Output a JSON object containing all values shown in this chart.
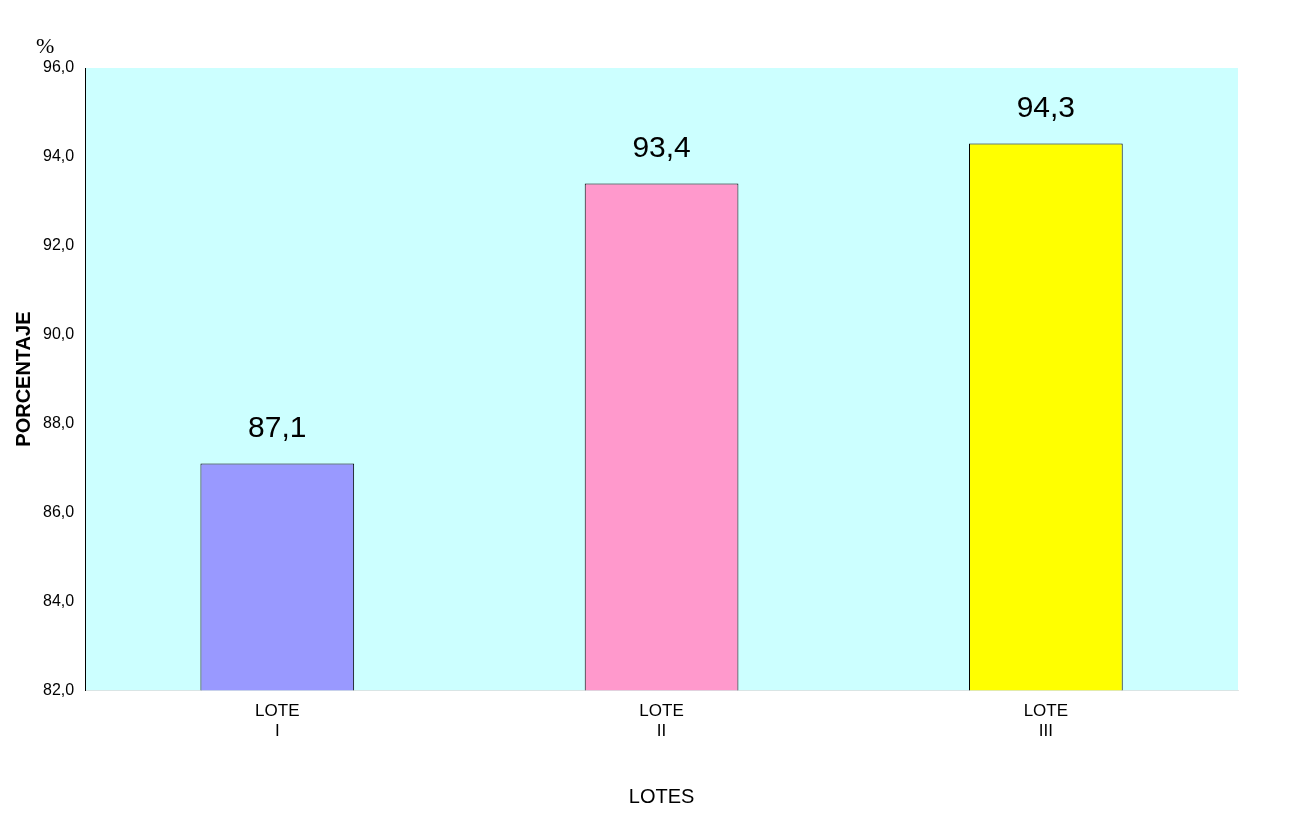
{
  "chart_data": {
    "type": "bar",
    "xlabel": "LOTES",
    "ylabel": "PORCENTAJE",
    "annotations": [
      "%"
    ],
    "categories": [
      "LOTE I",
      "LOTE II",
      "LOTE III"
    ],
    "values": [
      87.1,
      93.4,
      94.3
    ],
    "colors": [
      "#9999ff",
      "#ff99cc",
      "#ffff00"
    ],
    "value_labels": [
      "87,1",
      "93,4",
      "94,3"
    ],
    "ylim": [
      82,
      96
    ],
    "yticks": [
      {
        "value": 82,
        "label": "82,0"
      },
      {
        "value": 84,
        "label": "84,0"
      },
      {
        "value": 86,
        "label": "86,0"
      },
      {
        "value": 88,
        "label": "88,0"
      },
      {
        "value": 90,
        "label": "90,0"
      },
      {
        "value": 92,
        "label": "92,0"
      },
      {
        "value": 94,
        "label": "94,0"
      },
      {
        "value": 96,
        "label": "96,0"
      }
    ],
    "grid": false,
    "legend": false
  }
}
